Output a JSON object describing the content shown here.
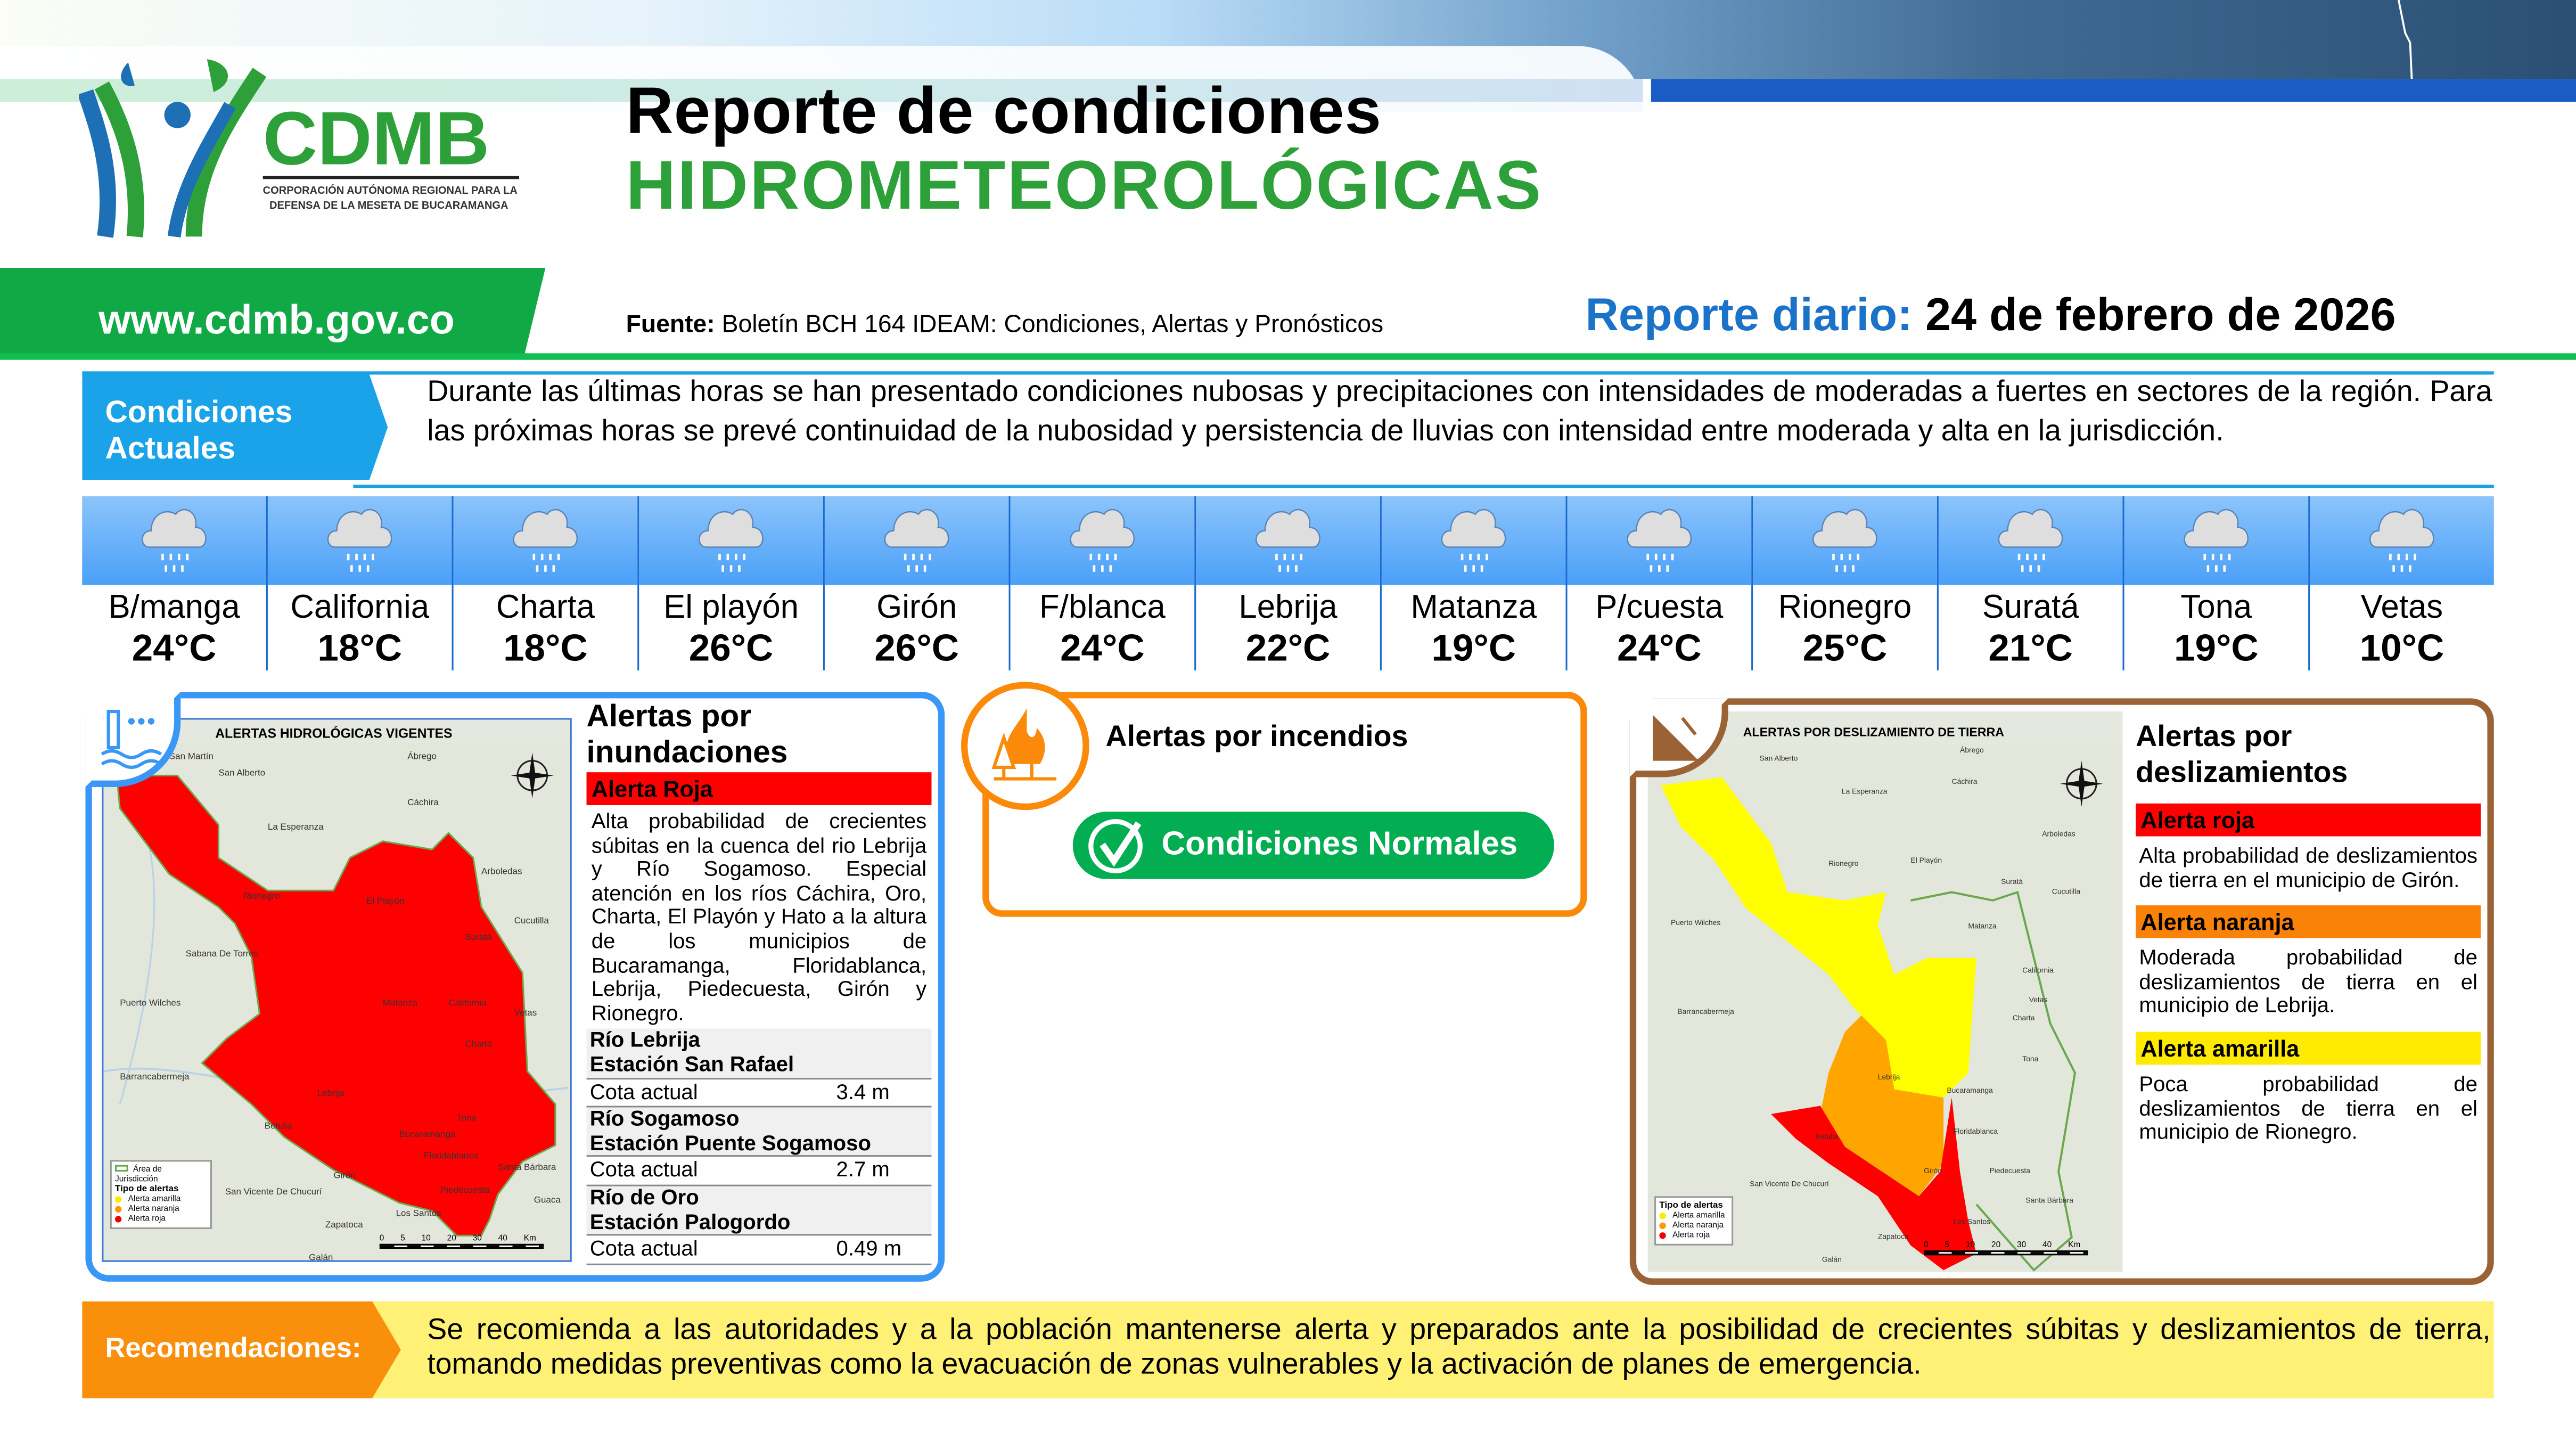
{
  "header": {
    "title_line1": "Reporte de condiciones",
    "title_line2": "HIDROMETEOROLÓGICAS",
    "logo": {
      "name": "CDMB",
      "subtitle": "CORPORACIÓN AUTÓNOMA REGIONAL PARA LA DEFENSA DE LA MESETA DE BUCARAMANGA"
    },
    "website": "www.cdmb.gov.co",
    "source_label": "Fuente:",
    "source_text": "Boletín BCH 164 IDEAM: Condiciones, Alertas y Pronósticos",
    "report_label": "Reporte diario:",
    "report_date": "24 de febrero de 2026"
  },
  "conditions": {
    "label": "Condiciones Actuales",
    "text": "Durante las últimas horas se han presentado condiciones nubosas y precipitaciones con intensidades de moderadas a fuertes en sectores de la región. Para las próximas horas se prevé continuidad de la nubosidad y persistencia de lluvias con intensidad entre moderada y alta en la jurisdicción."
  },
  "weather": [
    {
      "name": "B/manga",
      "temp": "24°C",
      "icon": "rain-cloud-icon"
    },
    {
      "name": "California",
      "temp": "18°C",
      "icon": "rain-cloud-icon"
    },
    {
      "name": "Charta",
      "temp": "18°C",
      "icon": "rain-cloud-icon"
    },
    {
      "name": "El playón",
      "temp": "26°C",
      "icon": "rain-cloud-icon"
    },
    {
      "name": "Girón",
      "temp": "26°C",
      "icon": "rain-cloud-icon"
    },
    {
      "name": "F/blanca",
      "temp": "24°C",
      "icon": "rain-cloud-icon"
    },
    {
      "name": "Lebrija",
      "temp": "22°C",
      "icon": "rain-cloud-icon"
    },
    {
      "name": "Matanza",
      "temp": "19°C",
      "icon": "rain-cloud-icon"
    },
    {
      "name": "P/cuesta",
      "temp": "24°C",
      "icon": "rain-cloud-icon"
    },
    {
      "name": "Rionegro",
      "temp": "25°C",
      "icon": "rain-cloud-icon"
    },
    {
      "name": "Suratá",
      "temp": "21°C",
      "icon": "rain-cloud-icon"
    },
    {
      "name": "Tona",
      "temp": "19°C",
      "icon": "rain-cloud-icon"
    },
    {
      "name": "Vetas",
      "temp": "10°C",
      "icon": "rain-cloud-icon"
    }
  ],
  "floods": {
    "title": "Alertas por inundaciones",
    "alert": "Alerta Roja",
    "alert_color": "#ff0000",
    "text": "Alta probabilidad de crecientes súbitas en la cuenca del rio Lebrija y Río Sogamoso. Especial atención en los ríos Cáchira, Oro, Charta, El Playón y Hato a la altura de los municipios de Bucaramanga, Floridablanca, Lebrija, Piedecuesta, Girón y Rionegro.",
    "stations": [
      {
        "river": "Río Lebrija",
        "station": "Estación San Rafael",
        "label": "Cota actual",
        "value": "3.4 m"
      },
      {
        "river": "Río Sogamoso",
        "station": "Estación Puente Sogamoso",
        "label": "Cota actual",
        "value": "2.7 m"
      },
      {
        "river": "Río de Oro",
        "station": "Estación Palogordo",
        "label": "Cota actual",
        "value": "0.49 m"
      }
    ],
    "map": {
      "title": "ALERTAS HIDROLÓGICAS VIGENTES",
      "places": [
        "San Martín",
        "San Alberto",
        "Ábrego",
        "Cáchira",
        "La Esperanza",
        "Arboledas",
        "Cucutilla",
        "Sabana De Torres",
        "Puerto Wilches",
        "Barrancabermeja",
        "Betulia",
        "San Vicente De Chucurí",
        "Zapatoca",
        "Los Santos",
        "Galán",
        "Santa Bárbara",
        "Guaca",
        "Rionegro",
        "El Playón",
        "Suratá",
        "Matanza",
        "California",
        "Vetas",
        "Charta",
        "Lebrija",
        "Tona",
        "Bucaramanga",
        "Floridablanca",
        "Girón",
        "Piedecuesta"
      ],
      "legend_area": "Área de Jurisdicción",
      "legend_title": "Tipo de alertas",
      "legend": [
        "Alerta amarilla",
        "Alerta naranja",
        "Alerta roja"
      ],
      "scale": [
        "0",
        "5",
        "10",
        "20",
        "30",
        "40"
      ],
      "scale_unit": "Km",
      "compass": [
        "N",
        "S",
        "E",
        "W"
      ]
    }
  },
  "fires": {
    "title": "Alertas por incendios",
    "status": "Condiciones Normales",
    "status_color": "#03ad52"
  },
  "landslides": {
    "title": "Alertas por deslizamientos",
    "alerts": [
      {
        "label": "Alerta roja",
        "color": "#ff0000",
        "text": "Alta probabilidad de deslizamientos de tierra en el municipio de Girón."
      },
      {
        "label": "Alerta naranja",
        "color": "#fb8208",
        "text": "Moderada probabilidad de deslizamientos de tierra en el municipio de Lebrija."
      },
      {
        "label": "Alerta amarilla",
        "color": "#ffea00",
        "text": "Poca probabilidad de deslizamientos de tierra en el municipio de Rionegro."
      }
    ],
    "map": {
      "title": "ALERTAS POR DESLIZAMIENTO DE TIERRA",
      "places": [
        "San Alberto",
        "Ábrego",
        "Cáchira",
        "La Esperanza",
        "Arboledas",
        "Rionegro",
        "El Playón",
        "Suratá",
        "Cucutilla",
        "Puerto Wilches",
        "Matanza",
        "California",
        "Vetas",
        "Charta",
        "Lebrija",
        "Tona",
        "Bucaramanga",
        "Barrancabermeja",
        "Floridablanca",
        "Betulia",
        "Girón",
        "Piedecuesta",
        "San Vicente De Chucurí",
        "Santa Bárbara",
        "Zapatoca",
        "Los Santos",
        "Galán"
      ],
      "legend_title": "Tipo de alertas",
      "legend": [
        "Alerta amarilla",
        "Alerta naranja",
        "Alerta roja"
      ],
      "scale": [
        "0",
        "5",
        "10",
        "20",
        "30",
        "40"
      ],
      "scale_unit": "Km"
    }
  },
  "recommendations": {
    "label": "Recomendaciones:",
    "text": "Se recomienda a las autoridades y a la población mantenerse alerta y preparados ante la posibilidad de crecientes súbitas y deslizamientos de tierra, tomando medidas preventivas como la evacuación de zonas vulnerables y la activación de planes de emergencia."
  }
}
